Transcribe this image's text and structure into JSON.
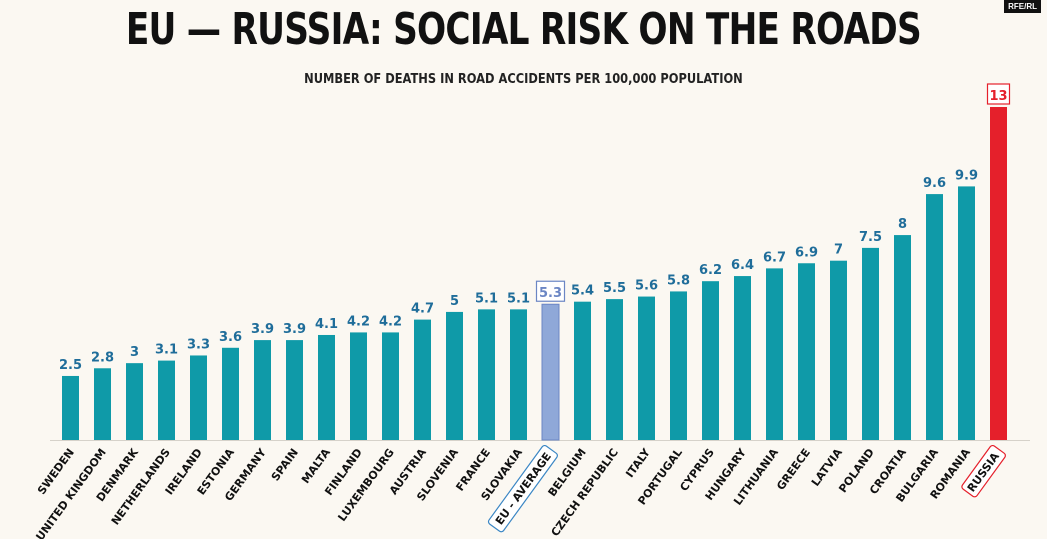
{
  "header": {
    "title": "EU — RUSSIA: SOCIAL RISK ON THE ROADS",
    "subtitle": "NUMBER OF DEATHS IN ROAD ACCIDENTS PER 100,000 POPULATION",
    "source": "RFE/RL"
  },
  "colors": {
    "bar": "#0f9aa8",
    "average_bar": "#8fa8d8",
    "russia_bar": "#e5202b",
    "value_text": "#1f6d9a",
    "russia_text": "#e5202b"
  },
  "chart_data": {
    "type": "bar",
    "title": "EU — RUSSIA: SOCIAL RISK ON THE ROADS",
    "subtitle": "NUMBER OF DEATHS IN ROAD ACCIDENTS PER 100,000 POPULATION",
    "categories": [
      "SWEDEN",
      "UNITED KINGDOM",
      "DENMARK",
      "NETHERLANDS",
      "IRELAND",
      "ESTONIA",
      "GERMANY",
      "SPAIN",
      "MALTA",
      "FINLAND",
      "LUXEMBOURG",
      "AUSTRIA",
      "SLOVENIA",
      "FRANCE",
      "SLOVAKIA",
      "EU - AVERAGE",
      "BELGIUM",
      "CZECH REPUBLIC",
      "ITALY",
      "PORTUGAL",
      "CYPRUS",
      "HUNGARY",
      "LITHUANIA",
      "GREECE",
      "LATVIA",
      "POLAND",
      "CROATIA",
      "BULGARIA",
      "ROMANIA",
      "RUSSIA"
    ],
    "values": [
      2.5,
      2.8,
      3,
      3.1,
      3.3,
      3.6,
      3.9,
      3.9,
      4.1,
      4.2,
      4.2,
      4.7,
      5,
      5.1,
      5.1,
      5.3,
      5.4,
      5.5,
      5.6,
      5.8,
      6.2,
      6.4,
      6.7,
      6.9,
      7,
      7.5,
      8,
      9.6,
      9.9,
      13
    ],
    "value_labels": [
      "2.5",
      "2.8",
      "3",
      "3.1",
      "3.3",
      "3.6",
      "3.9",
      "3.9",
      "4.1",
      "4.2",
      "4.2",
      "4.7",
      "5",
      "5.1",
      "5.1",
      "5.3",
      "5.4",
      "5.5",
      "5.6",
      "5.8",
      "6.2",
      "6.4",
      "6.7",
      "6.9",
      "7",
      "7.5",
      "8",
      "9.6",
      "9.9",
      "13"
    ],
    "highlight": {
      "EU - AVERAGE": "average",
      "RUSSIA": "russia"
    },
    "ylim": [
      0,
      13
    ],
    "grid": false,
    "legend": false
  }
}
